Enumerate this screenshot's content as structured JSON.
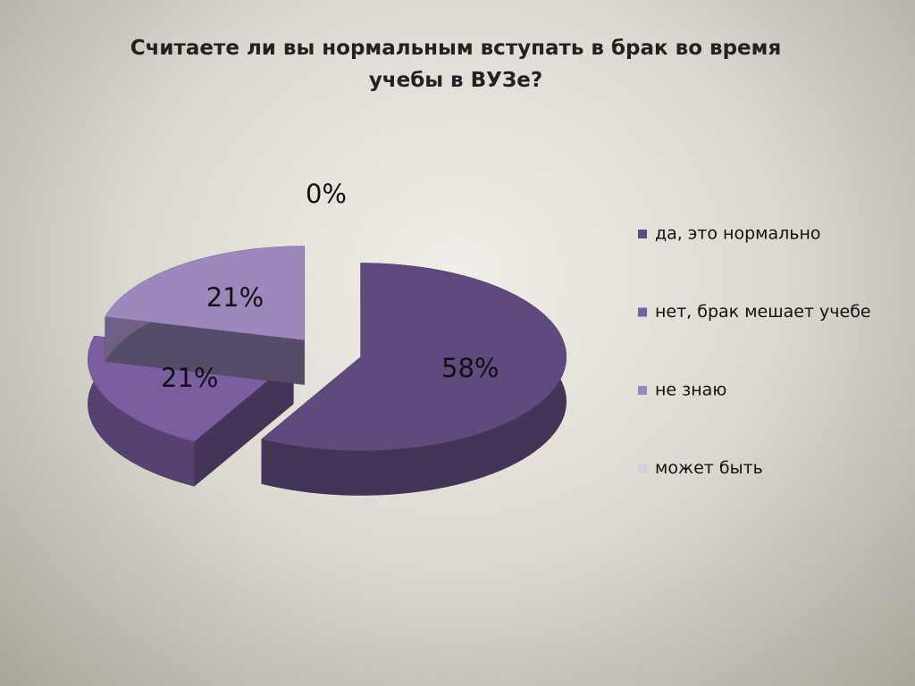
{
  "chart_data": {
    "type": "pie3d",
    "title": "Считаете ли вы нормальным вступать в брак во время учебы в ВУЗе?",
    "categories": [
      "да, это нормально",
      "нет, брак мешает учебе",
      "не знаю",
      "может быть"
    ],
    "values": [
      58,
      21,
      21,
      0
    ],
    "value_labels": [
      "58%",
      "21%",
      "21%",
      "0%"
    ],
    "colors": [
      "#5f4a7e",
      "#7b5ea0",
      "#9d88bd",
      "#d5cbe3"
    ],
    "legend": "right"
  }
}
